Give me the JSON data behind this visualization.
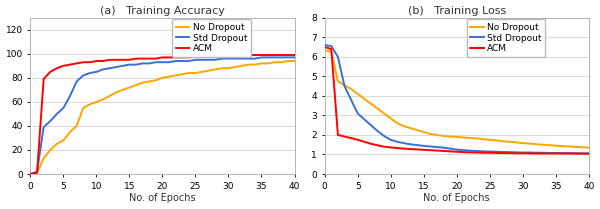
{
  "title_a": "(a)   Training Accuracy",
  "title_b": "(b)   Training Loss",
  "xlabel": "No. of Epochs",
  "colors": {
    "no_dropout": "#FFA500",
    "std_dropout": "#3B6FD4",
    "acm": "#FF0000"
  },
  "legend_labels": [
    "No Dropout",
    "Std Dropout",
    "ACM"
  ],
  "acc_xlim": [
    0,
    40
  ],
  "acc_ylim": [
    0,
    130
  ],
  "acc_yticks": [
    0,
    20,
    40,
    60,
    80,
    100,
    120
  ],
  "loss_xlim": [
    0,
    40
  ],
  "loss_ylim": [
    0,
    8
  ],
  "loss_yticks": [
    0,
    1,
    2,
    3,
    4,
    5,
    6,
    7,
    8
  ],
  "xticks": [
    0,
    5,
    10,
    15,
    20,
    25,
    30,
    35,
    40
  ],
  "acc_no_dropout_x": [
    0,
    1,
    2,
    3,
    4,
    5,
    6,
    7,
    8,
    9,
    10,
    11,
    12,
    13,
    14,
    15,
    16,
    17,
    18,
    19,
    20,
    21,
    22,
    23,
    24,
    25,
    26,
    27,
    28,
    29,
    30,
    31,
    32,
    33,
    34,
    35,
    36,
    37,
    38,
    39,
    40
  ],
  "acc_no_dropout_y": [
    0,
    1,
    13,
    20,
    25,
    28,
    35,
    40,
    55,
    58,
    60,
    62,
    65,
    68,
    70,
    72,
    74,
    76,
    77,
    78,
    80,
    81,
    82,
    83,
    84,
    84,
    85,
    86,
    87,
    88,
    88,
    89,
    90,
    91,
    91,
    92,
    92,
    93,
    93,
    94,
    94
  ],
  "acc_std_dropout_x": [
    0,
    1,
    2,
    3,
    4,
    5,
    6,
    7,
    8,
    9,
    10,
    11,
    12,
    13,
    14,
    15,
    16,
    17,
    18,
    19,
    20,
    21,
    22,
    23,
    24,
    25,
    26,
    27,
    28,
    29,
    30,
    31,
    32,
    33,
    34,
    35,
    36,
    37,
    38,
    39,
    40
  ],
  "acc_std_dropout_y": [
    0,
    2,
    39,
    44,
    50,
    55,
    65,
    77,
    82,
    84,
    85,
    87,
    88,
    89,
    90,
    91,
    91,
    92,
    92,
    93,
    93,
    93,
    94,
    94,
    94,
    95,
    95,
    95,
    95,
    96,
    96,
    96,
    96,
    96,
    96,
    97,
    97,
    97,
    97,
    97,
    97
  ],
  "acc_acm_x": [
    0,
    1,
    2,
    3,
    4,
    5,
    6,
    7,
    8,
    9,
    10,
    11,
    12,
    13,
    14,
    15,
    16,
    17,
    18,
    19,
    20,
    21,
    22,
    23,
    24,
    25,
    26,
    27,
    28,
    29,
    30,
    31,
    32,
    33,
    34,
    35,
    36,
    37,
    38,
    39,
    40
  ],
  "acc_acm_y": [
    0,
    1,
    79,
    85,
    88,
    90,
    91,
    92,
    93,
    93,
    94,
    94,
    95,
    95,
    95,
    95,
    96,
    96,
    96,
    96,
    97,
    97,
    97,
    97,
    97,
    98,
    98,
    98,
    98,
    98,
    98,
    98,
    99,
    99,
    99,
    99,
    99,
    99,
    99,
    99,
    99
  ],
  "loss_no_dropout_x": [
    0,
    1,
    2,
    3,
    4,
    5,
    6,
    7,
    8,
    9,
    10,
    11,
    12,
    13,
    14,
    15,
    16,
    17,
    18,
    19,
    20,
    21,
    22,
    23,
    24,
    25,
    26,
    27,
    28,
    29,
    30,
    31,
    32,
    33,
    34,
    35,
    36,
    37,
    38,
    39,
    40
  ],
  "loss_no_dropout_y": [
    6.35,
    6.25,
    4.75,
    4.55,
    4.35,
    4.1,
    3.85,
    3.6,
    3.35,
    3.1,
    2.85,
    2.6,
    2.45,
    2.35,
    2.25,
    2.15,
    2.05,
    2.0,
    1.95,
    1.92,
    1.9,
    1.87,
    1.85,
    1.82,
    1.78,
    1.75,
    1.72,
    1.68,
    1.65,
    1.62,
    1.58,
    1.56,
    1.53,
    1.5,
    1.48,
    1.45,
    1.43,
    1.41,
    1.39,
    1.37,
    1.35
  ],
  "loss_std_dropout_x": [
    0,
    1,
    2,
    3,
    4,
    5,
    6,
    7,
    8,
    9,
    10,
    11,
    12,
    13,
    14,
    15,
    16,
    17,
    18,
    19,
    20,
    21,
    22,
    23,
    24,
    25,
    26,
    27,
    28,
    29,
    30,
    31,
    32,
    33,
    34,
    35,
    36,
    37,
    38,
    39,
    40
  ],
  "loss_std_dropout_y": [
    6.6,
    6.55,
    6.0,
    4.5,
    3.8,
    3.1,
    2.8,
    2.5,
    2.2,
    1.95,
    1.75,
    1.65,
    1.58,
    1.52,
    1.48,
    1.44,
    1.41,
    1.38,
    1.35,
    1.3,
    1.25,
    1.22,
    1.2,
    1.18,
    1.16,
    1.15,
    1.14,
    1.13,
    1.12,
    1.11,
    1.1,
    1.1,
    1.09,
    1.09,
    1.08,
    1.08,
    1.07,
    1.07,
    1.07,
    1.06,
    1.06
  ],
  "loss_acm_x": [
    0,
    1,
    2,
    3,
    4,
    5,
    6,
    7,
    8,
    9,
    10,
    11,
    12,
    13,
    14,
    15,
    16,
    17,
    18,
    19,
    20,
    21,
    22,
    23,
    24,
    25,
    26,
    27,
    28,
    29,
    30,
    31,
    32,
    33,
    34,
    35,
    36,
    37,
    38,
    39,
    40
  ],
  "loss_acm_y": [
    6.5,
    6.4,
    2.0,
    1.92,
    1.84,
    1.75,
    1.65,
    1.55,
    1.47,
    1.4,
    1.36,
    1.33,
    1.3,
    1.28,
    1.26,
    1.24,
    1.22,
    1.2,
    1.18,
    1.16,
    1.14,
    1.12,
    1.11,
    1.1,
    1.09,
    1.09,
    1.08,
    1.07,
    1.07,
    1.06,
    1.06,
    1.06,
    1.05,
    1.05,
    1.05,
    1.05,
    1.05,
    1.05,
    1.04,
    1.04,
    1.04
  ],
  "bg_color": "#ffffff",
  "grid_color": "#d8d8d8",
  "linewidth": 1.4,
  "title_fontsize": 8,
  "label_fontsize": 7,
  "tick_fontsize": 6.5,
  "legend_fontsize": 6.5
}
